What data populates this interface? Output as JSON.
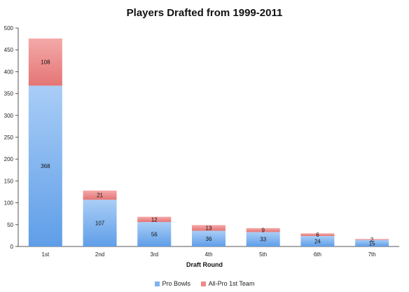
{
  "chart_data": {
    "type": "bar",
    "stacked": true,
    "title": "Players Drafted from 1999-2011",
    "xlabel": "Draft Round",
    "ylabel": "",
    "categories": [
      "1st",
      "2nd",
      "3rd",
      "4th",
      "5th",
      "6th",
      "7th"
    ],
    "series": [
      {
        "name": "Pro Bowls",
        "values": [
          368,
          107,
          56,
          36,
          33,
          24,
          15
        ],
        "color": "#7fb3ef"
      },
      {
        "name": "All-Pro 1st Team",
        "values": [
          108,
          21,
          12,
          13,
          9,
          6,
          2
        ],
        "color": "#ee8a8a"
      }
    ],
    "ylim": [
      0,
      500
    ],
    "yticks": [
      0,
      50,
      100,
      150,
      200,
      250,
      300,
      350,
      400,
      450,
      500
    ],
    "grid": false,
    "legend": "bottom"
  }
}
